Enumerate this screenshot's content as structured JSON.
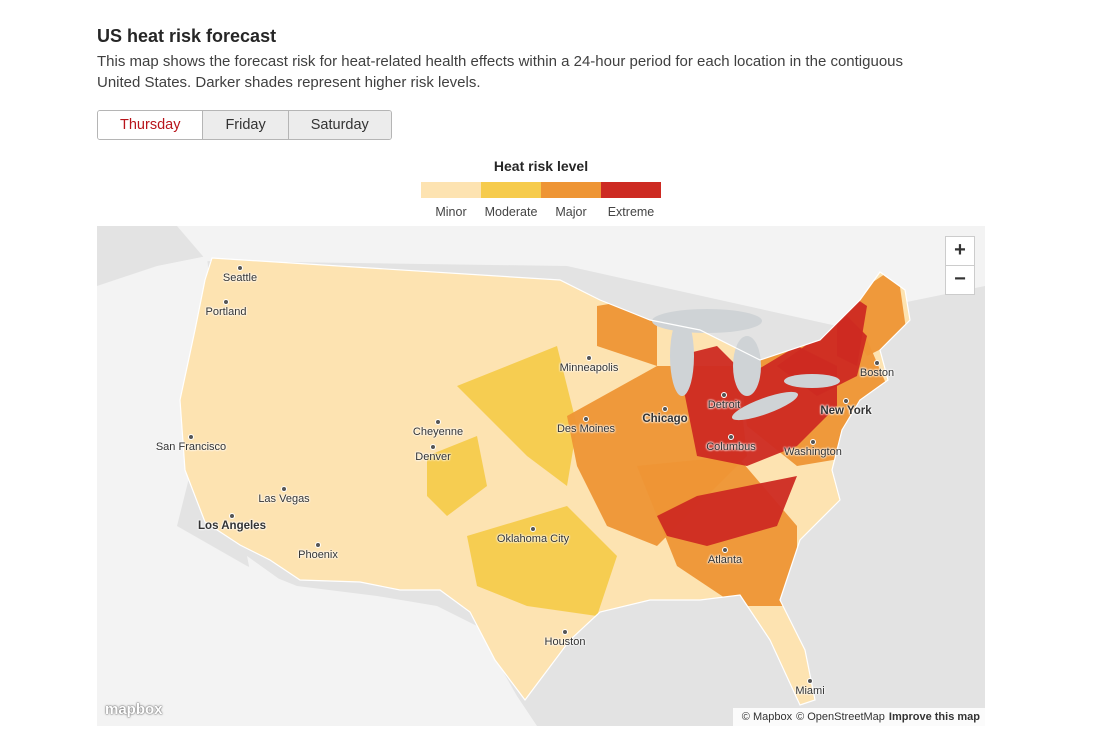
{
  "header": {
    "title": "US heat risk forecast",
    "description": "This map shows the forecast risk for heat-related health effects within a 24-hour period for each location in the contiguous United States. Darker shades represent higher risk levels."
  },
  "tabs": [
    {
      "label": "Thursday",
      "selected": true
    },
    {
      "label": "Friday",
      "selected": false
    },
    {
      "label": "Saturday",
      "selected": false
    }
  ],
  "legend": {
    "title": "Heat risk level",
    "items": [
      {
        "label": "Minor",
        "color": "#fde3b1"
      },
      {
        "label": "Moderate",
        "color": "#f6cb4c"
      },
      {
        "label": "Major",
        "color": "#ee9535"
      },
      {
        "label": "Extreme",
        "color": "#cd2a22"
      }
    ]
  },
  "map": {
    "cities": [
      "Seattle",
      "Portland",
      "San Francisco",
      "Las Vegas",
      "Los Angeles",
      "Phoenix",
      "Cheyenne",
      "Denver",
      "Minneapolis",
      "Des Moines",
      "Chicago",
      "Detroit",
      "Columbus",
      "Oklahoma City",
      "Atlanta",
      "Washington",
      "New York",
      "Boston",
      "Houston",
      "Miami"
    ],
    "zoom_in": "+",
    "zoom_out": "−",
    "logo": "mapbox",
    "attribution": [
      "© Mapbox",
      "© OpenStreetMap",
      "Improve this map"
    ]
  }
}
